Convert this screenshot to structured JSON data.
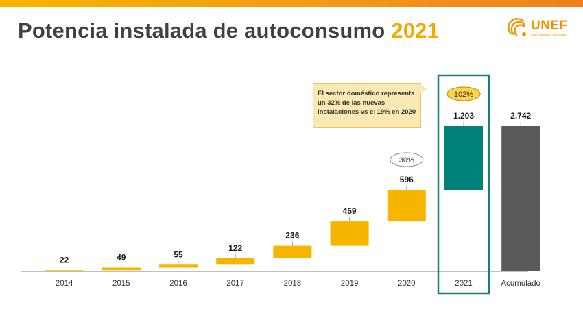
{
  "title": {
    "main": "Potencia instalada de autoconsumo",
    "year": "2021"
  },
  "logo": {
    "name": "UNEF",
    "tagline": "Unión Española Fotovoltaica"
  },
  "note": {
    "text": "El sector doméstico representa un 32% de las nuevas instalaciones vs el 19% en 2020"
  },
  "colors": {
    "yellow": "#f7b500",
    "teal": "#00827a",
    "gray": "#595959",
    "frame": "#1a7f7a",
    "accent": "#f39a16"
  },
  "chart_data": {
    "type": "bar",
    "subtype": "waterfall",
    "categories": [
      "2014",
      "2015",
      "2016",
      "2017",
      "2018",
      "2019",
      "2020",
      "2021",
      "Acumulado"
    ],
    "values": [
      22,
      49,
      55,
      122,
      236,
      459,
      596,
      1203,
      2742
    ],
    "value_labels": [
      "22",
      "49",
      "55",
      "122",
      "236",
      "459",
      "596",
      "1.203",
      "2.742"
    ],
    "kinds": [
      "step",
      "step",
      "step",
      "step",
      "step",
      "step",
      "step",
      "step",
      "total"
    ],
    "highlight": "2021",
    "growth_labels": [
      {
        "category": "2020",
        "text": "30%"
      },
      {
        "category": "2021",
        "text": "102%"
      }
    ],
    "ylim": [
      0,
      2742
    ],
    "grid": false,
    "legend": "none"
  }
}
